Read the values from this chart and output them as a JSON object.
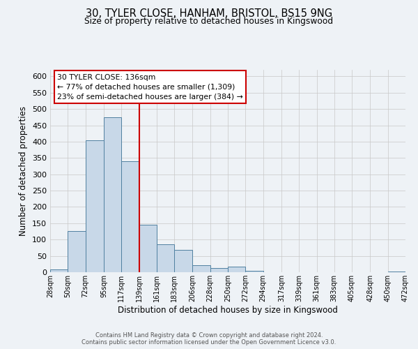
{
  "title": "30, TYLER CLOSE, HANHAM, BRISTOL, BS15 9NG",
  "subtitle": "Size of property relative to detached houses in Kingswood",
  "xlabel": "Distribution of detached houses by size in Kingswood",
  "ylabel": "Number of detached properties",
  "bin_edges": [
    28,
    50,
    72,
    95,
    117,
    139,
    161,
    183,
    206,
    228,
    250,
    272,
    294,
    317,
    339,
    361,
    383,
    405,
    428,
    450,
    472
  ],
  "bin_labels": [
    "28sqm",
    "50sqm",
    "72sqm",
    "95sqm",
    "117sqm",
    "139sqm",
    "161sqm",
    "183sqm",
    "206sqm",
    "228sqm",
    "250sqm",
    "272sqm",
    "294sqm",
    "317sqm",
    "339sqm",
    "361sqm",
    "383sqm",
    "405sqm",
    "428sqm",
    "450sqm",
    "472sqm"
  ],
  "bar_heights": [
    8,
    127,
    405,
    474,
    341,
    145,
    85,
    68,
    22,
    12,
    17,
    5,
    1,
    1,
    1,
    0,
    0,
    0,
    0,
    3
  ],
  "bar_color": "#c8d8e8",
  "bar_edge_color": "#5080a0",
  "reference_line_x": 139,
  "ylim": [
    0,
    620
  ],
  "yticks": [
    0,
    50,
    100,
    150,
    200,
    250,
    300,
    350,
    400,
    450,
    500,
    550,
    600
  ],
  "annotation_line1": "30 TYLER CLOSE: 136sqm",
  "annotation_line2": "← 77% of detached houses are smaller (1,309)",
  "annotation_line3": "23% of semi-detached houses are larger (384) →",
  "annotation_box_color": "#ffffff",
  "annotation_box_edge_color": "#cc0000",
  "ref_line_color": "#cc0000",
  "footer_line1": "Contains HM Land Registry data © Crown copyright and database right 2024.",
  "footer_line2": "Contains public sector information licensed under the Open Government Licence v3.0.",
  "background_color": "#eef2f6",
  "plot_background_color": "#eef2f6",
  "grid_color": "#c8c8c8"
}
